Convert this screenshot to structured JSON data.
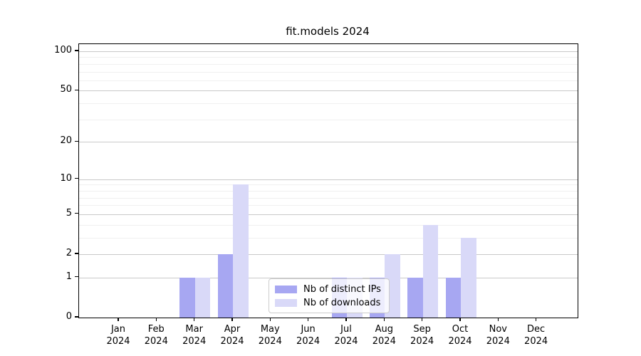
{
  "figure": {
    "title": "fit.models 2024"
  },
  "chart_data": {
    "type": "bar",
    "title": "fit.models 2024",
    "categories": [
      "Jan",
      "Feb",
      "Mar",
      "Apr",
      "May",
      "Jun",
      "Jul",
      "Aug",
      "Sep",
      "Oct",
      "Nov",
      "Dec"
    ],
    "x_tick_year": "2024",
    "series": [
      {
        "name": "Nb of distinct IPs",
        "color": "#a7a7f2",
        "values": [
          0,
          0,
          1,
          2,
          0,
          0,
          1,
          1,
          1,
          1,
          0,
          0
        ]
      },
      {
        "name": "Nb of downloads",
        "color": "#d9d9f8",
        "values": [
          0,
          0,
          1,
          9,
          0,
          0,
          1,
          2,
          4,
          3,
          0,
          0
        ]
      }
    ],
    "yscale": "log1p",
    "ylim": [
      0,
      113
    ],
    "yticks": [
      0,
      1,
      2,
      5,
      10,
      20,
      50,
      100
    ],
    "minor_yticks": [
      3,
      4,
      6,
      7,
      8,
      9,
      30,
      40,
      60,
      70,
      80,
      90
    ],
    "grid": true,
    "legend_position": "lower center",
    "colors": {
      "grid_major": "#c9c9c9",
      "grid_minor": "#f0f0f0",
      "axis": "#000000",
      "background": "#ffffff"
    }
  }
}
